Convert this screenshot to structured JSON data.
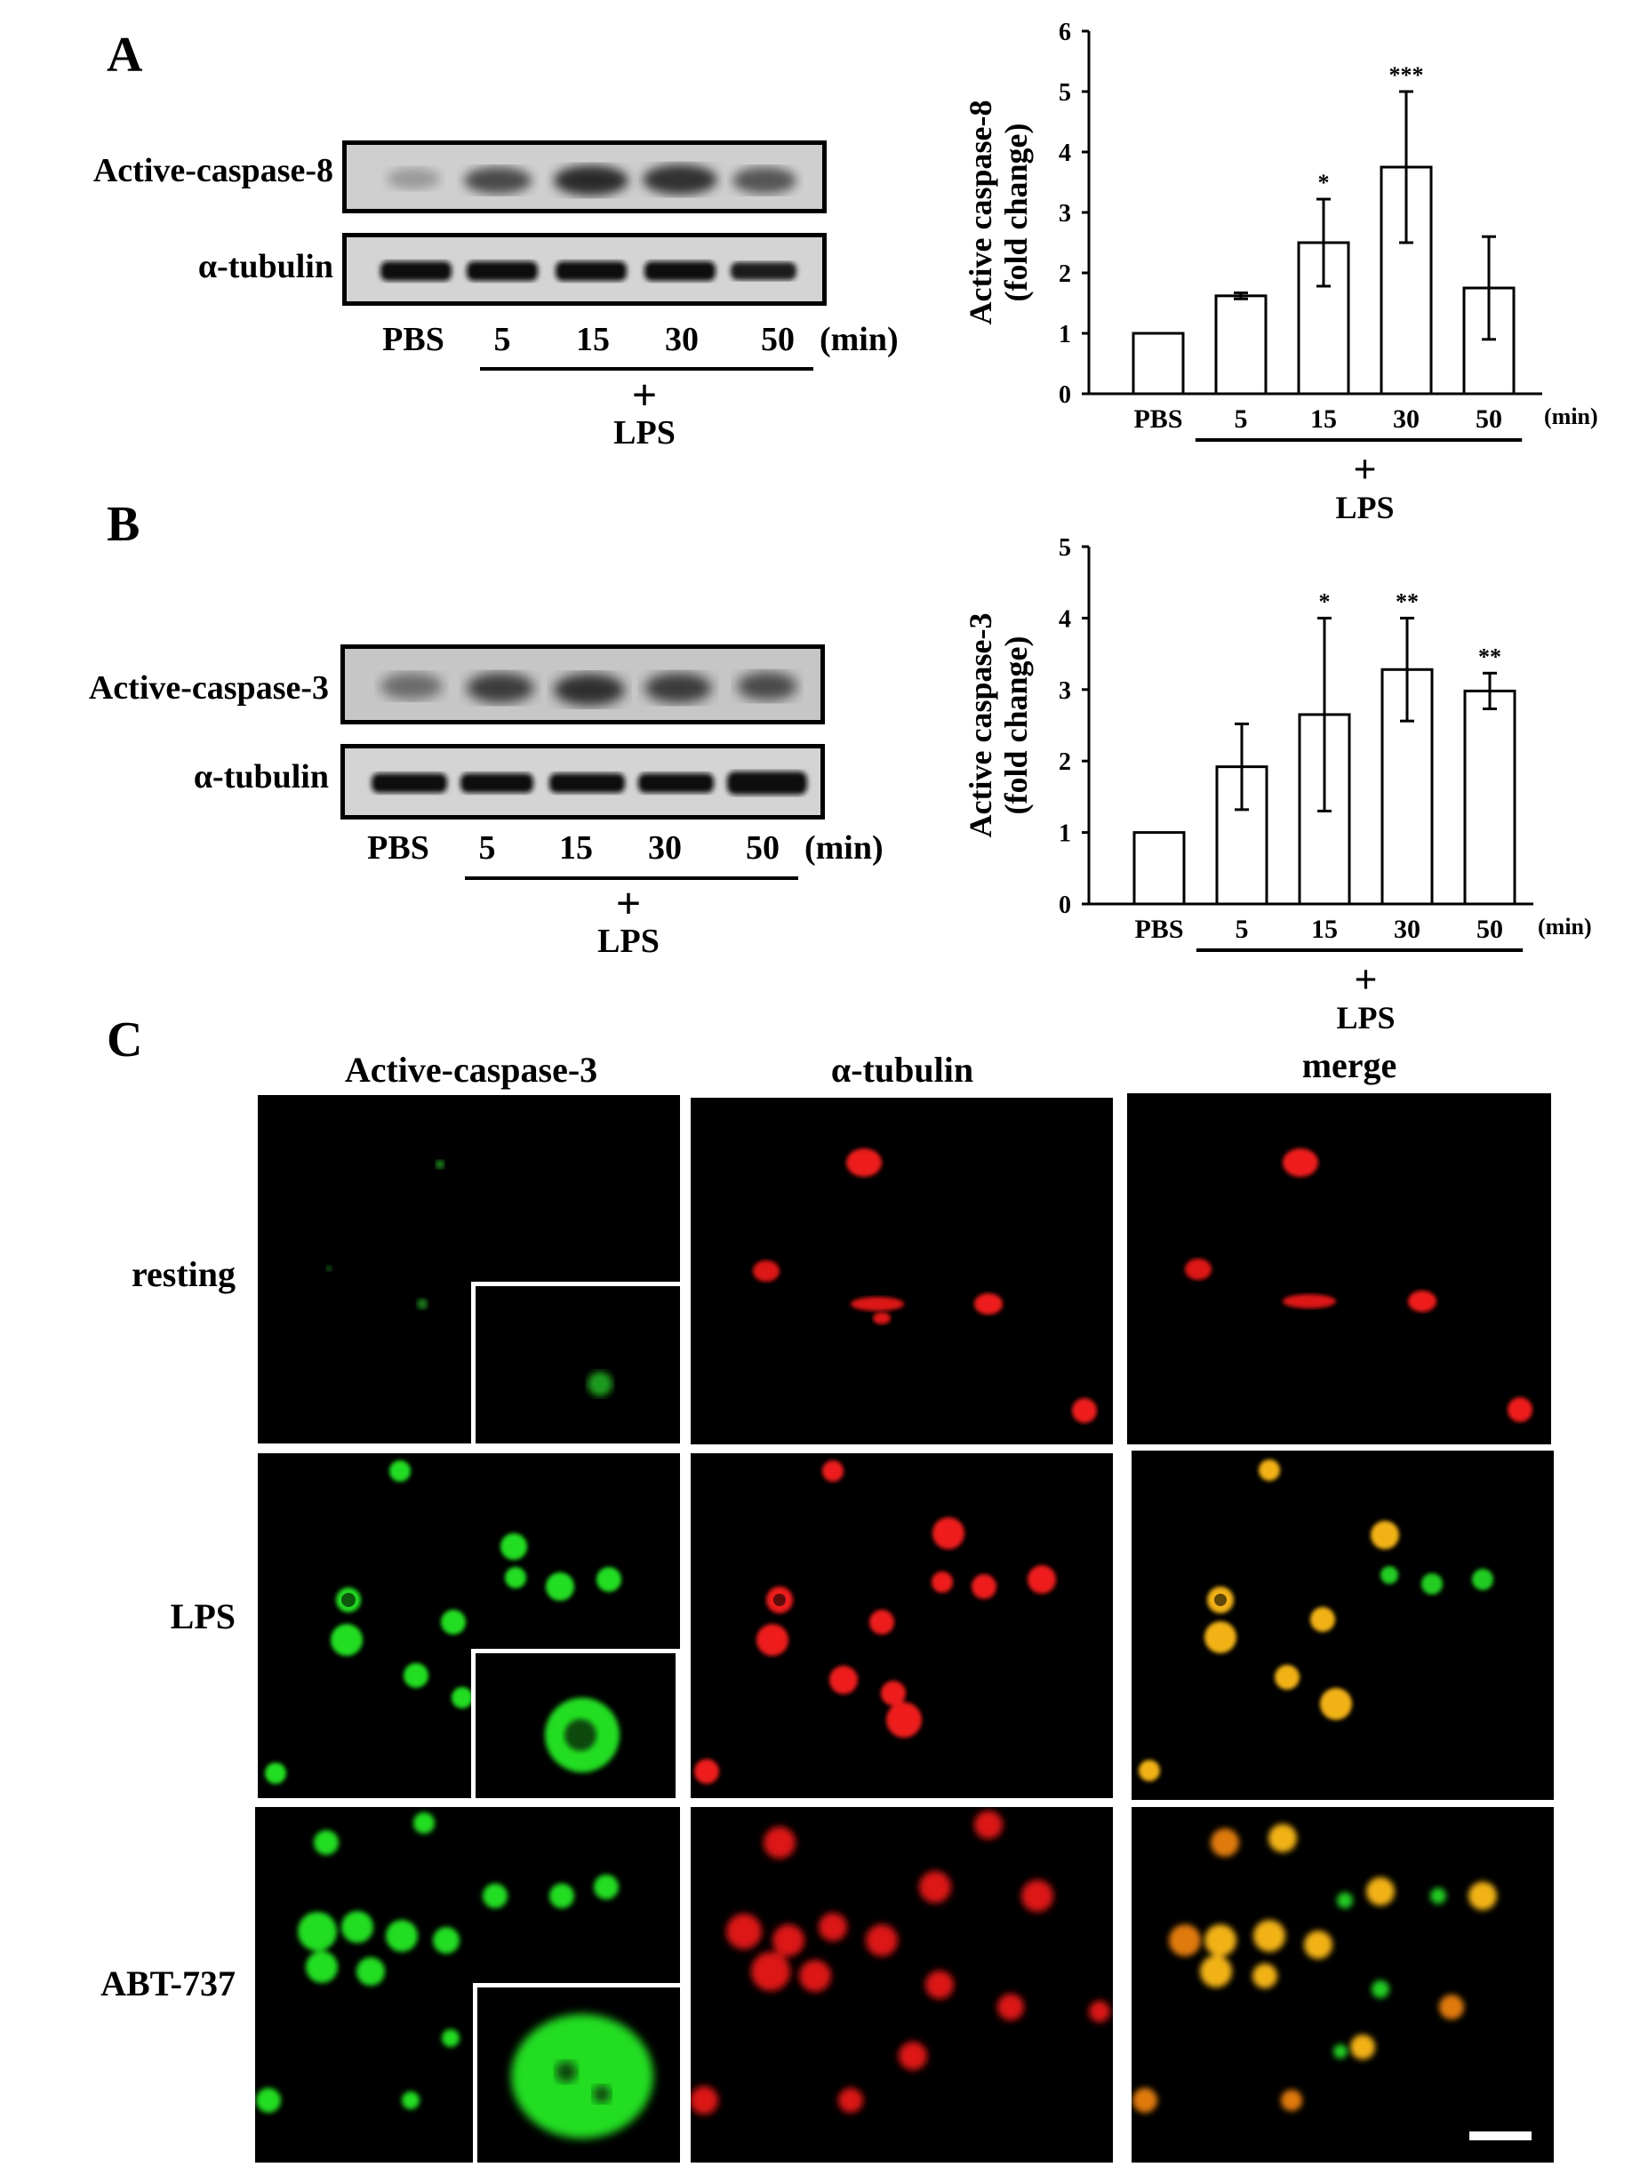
{
  "panels": {
    "a": {
      "letter": "A",
      "blot_labels": [
        "Active-caspase-8",
        "α-tubulin"
      ],
      "lanes": [
        "PBS",
        "5",
        "15",
        "30",
        "50"
      ],
      "unit": "(min)",
      "treatment_plus": "+",
      "treatment": "LPS"
    },
    "b": {
      "letter": "B",
      "blot_labels": [
        "Active-caspase-3",
        "α-tubulin"
      ],
      "lanes": [
        "PBS",
        "5",
        "15",
        "30",
        "50"
      ],
      "unit": "(min)",
      "treatment_plus": "+",
      "treatment": "LPS"
    },
    "c": {
      "letter": "C",
      "columns": [
        "Active-caspase-3",
        "α-tubulin",
        "merge"
      ],
      "rows": [
        "resting",
        "LPS",
        "ABT-737"
      ]
    }
  },
  "chart_data": [
    {
      "type": "bar",
      "categories": [
        "PBS",
        "5",
        "15",
        "30",
        "50"
      ],
      "values": [
        1.0,
        1.62,
        2.5,
        3.75,
        1.75
      ],
      "errors": [
        0,
        0.05,
        0.72,
        1.25,
        0.85
      ],
      "significance": [
        "",
        "",
        "*",
        "***",
        ""
      ],
      "ylabel_line1": "Active caspase-8",
      "ylabel_line2": "(fold change)",
      "unit": "(min)",
      "treatment_plus": "+",
      "treatment": "LPS",
      "ylim": [
        0,
        6
      ],
      "yticks": [
        0,
        1,
        2,
        3,
        4,
        5,
        6
      ]
    },
    {
      "type": "bar",
      "categories": [
        "PBS",
        "5",
        "15",
        "30",
        "50"
      ],
      "values": [
        1.0,
        1.92,
        2.65,
        3.28,
        2.98
      ],
      "errors": [
        0,
        0.6,
        1.35,
        0.72,
        0.25
      ],
      "significance": [
        "",
        "",
        "*",
        "**",
        "**"
      ],
      "ylabel_line1": "Active caspase-3",
      "ylabel_line2": "(fold change)",
      "unit": "(min)",
      "treatment_plus": "+",
      "treatment": "LPS",
      "ylim": [
        0,
        5
      ],
      "yticks": [
        0,
        1,
        2,
        3,
        4,
        5
      ]
    }
  ],
  "colors": {
    "green_channel": "#22dd22",
    "red_channel": "#ee1a1a",
    "merge_channel": "#f2b218"
  }
}
